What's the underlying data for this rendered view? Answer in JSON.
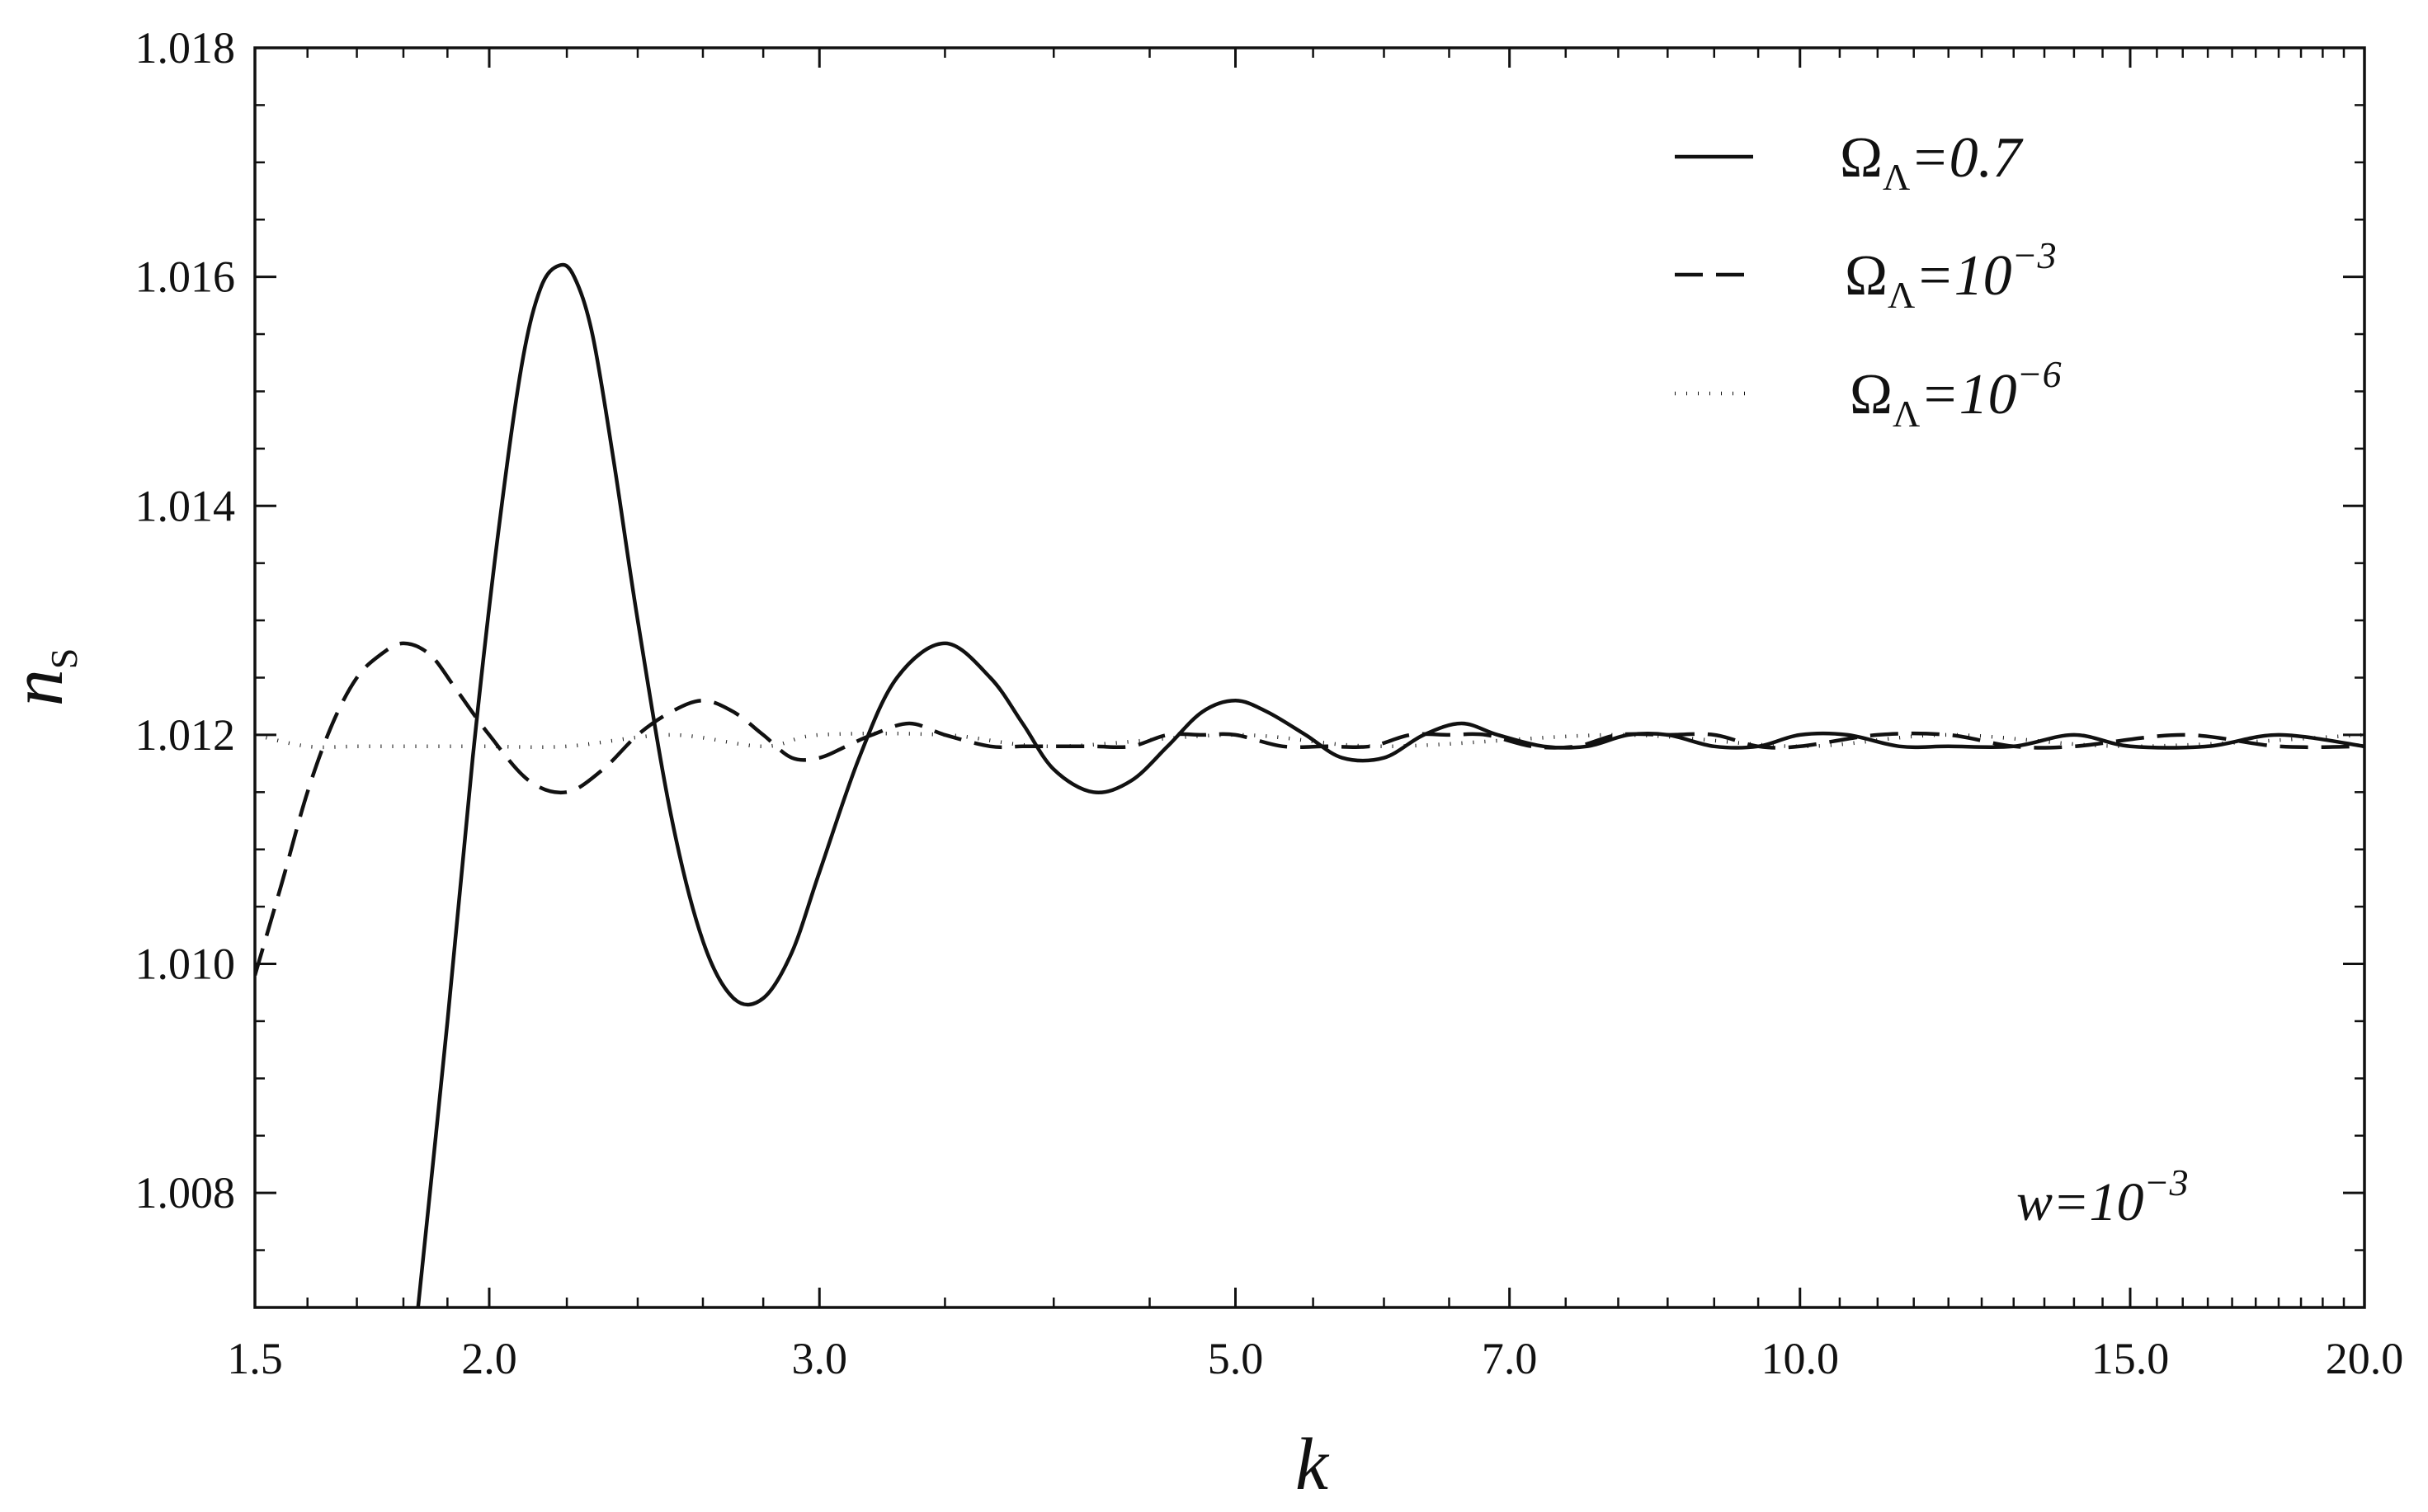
{
  "chart_data": {
    "type": "line",
    "title": "",
    "xlabel": "k",
    "ylabel_main": "n",
    "ylabel_sub": "S",
    "x_scale": "log",
    "xlim": [
      1.5,
      20.0
    ],
    "ylim": [
      1.007,
      1.018
    ],
    "x_ticks": [
      1.5,
      2.0,
      3.0,
      5.0,
      7.0,
      10.0,
      15.0,
      20.0
    ],
    "x_tick_labels": [
      "1.5",
      "2.0",
      "3.0",
      "5.0",
      "7.0",
      "10.0",
      "15.0",
      "20.0"
    ],
    "y_ticks": [
      1.008,
      1.01,
      1.012,
      1.014,
      1.016,
      1.018
    ],
    "y_tick_labels": [
      "1.008",
      "1.010",
      "1.012",
      "1.014",
      "1.016",
      "1.018"
    ],
    "grid": false,
    "legend_position": "top-right",
    "annotation": {
      "main": "w=10",
      "sup": "−3",
      "position": "bottom-right"
    },
    "series": [
      {
        "name": "ΩΛ=0.7",
        "label_main": "Ω",
        "label_sub": "Λ",
        "label_rest": "=0.7",
        "label_sup": "",
        "style": "solid",
        "x": [
          1.83,
          1.9,
          1.96,
          2.02,
          2.08,
          2.13,
          2.18,
          2.22,
          2.27,
          2.33,
          2.4,
          2.5,
          2.6,
          2.7,
          2.8,
          2.9,
          3.0,
          3.15,
          3.3,
          3.5,
          3.7,
          3.85,
          4.0,
          4.2,
          4.4,
          4.6,
          4.8,
          5.0,
          5.2,
          5.45,
          5.7,
          6.0,
          6.3,
          6.6,
          6.9,
          7.3,
          7.7,
          8.1,
          8.5,
          9.0,
          9.5,
          10.0,
          10.6,
          11.3,
          12.0,
          13.0,
          14.0,
          15.0,
          16.5,
          18.0,
          20.0
        ],
        "y": [
          1.0069,
          1.0095,
          1.0118,
          1.0137,
          1.0152,
          1.0159,
          1.0161,
          1.016,
          1.0155,
          1.0144,
          1.013,
          1.0113,
          1.0102,
          1.0097,
          1.0097,
          1.0101,
          1.0108,
          1.0118,
          1.0125,
          1.0128,
          1.0125,
          1.0121,
          1.0117,
          1.0115,
          1.0116,
          1.0119,
          1.0122,
          1.0123,
          1.0122,
          1.012,
          1.0118,
          1.0118,
          1.012,
          1.0121,
          1.012,
          1.0119,
          1.0119,
          1.012,
          1.012,
          1.0119,
          1.0119,
          1.012,
          1.012,
          1.0119,
          1.0119,
          1.0119,
          1.012,
          1.0119,
          1.0119,
          1.012,
          1.0119
        ]
      },
      {
        "name": "ΩΛ=10⁻³",
        "label_main": "Ω",
        "label_sub": "Λ",
        "label_rest": "=10",
        "label_sup": "−3",
        "style": "dashed",
        "x": [
          1.5,
          1.55,
          1.6,
          1.65,
          1.7,
          1.75,
          1.8,
          1.86,
          1.92,
          2.0,
          2.1,
          2.2,
          2.3,
          2.4,
          2.5,
          2.6,
          2.7,
          2.8,
          2.9,
          3.0,
          3.1,
          3.2,
          3.35,
          3.5,
          3.7,
          3.85,
          4.0,
          4.2,
          4.4,
          4.6,
          4.8,
          5.0,
          5.3,
          5.6,
          5.9,
          6.2,
          6.5,
          6.8,
          7.2,
          7.6,
          8.0,
          8.5,
          9.0,
          9.5,
          10.0,
          11.0,
          12.0,
          13.0,
          14.0,
          16.0,
          18.0,
          20.0
        ],
        "y": [
          1.0099,
          1.0107,
          1.0115,
          1.0121,
          1.0125,
          1.0127,
          1.0128,
          1.0127,
          1.0124,
          1.012,
          1.0116,
          1.0115,
          1.0117,
          1.012,
          1.0122,
          1.0123,
          1.0122,
          1.012,
          1.0118,
          1.0118,
          1.0119,
          1.012,
          1.0121,
          1.012,
          1.0119,
          1.0119,
          1.0119,
          1.0119,
          1.0119,
          1.012,
          1.012,
          1.012,
          1.0119,
          1.0119,
          1.0119,
          1.012,
          1.012,
          1.012,
          1.0119,
          1.0119,
          1.012,
          1.012,
          1.012,
          1.0119,
          1.0119,
          1.012,
          1.012,
          1.0119,
          1.0119,
          1.012,
          1.0119,
          1.0119
        ]
      },
      {
        "name": "ΩΛ=10⁻⁶",
        "label_main": "Ω",
        "label_sub": "Λ",
        "label_rest": "=10",
        "label_sup": "−6",
        "style": "dotted",
        "x": [
          1.5,
          1.6,
          1.7,
          1.8,
          1.9,
          2.0,
          2.2,
          2.5,
          2.8,
          3.0,
          3.5,
          4.0,
          5.0,
          6.0,
          8.0,
          10.0,
          12.0,
          15.0,
          20.0
        ],
        "y": [
          1.012,
          1.0119,
          1.0119,
          1.0119,
          1.0119,
          1.0119,
          1.0119,
          1.012,
          1.0119,
          1.012,
          1.012,
          1.0119,
          1.012,
          1.0119,
          1.012,
          1.0119,
          1.012,
          1.0119,
          1.012
        ]
      }
    ]
  }
}
